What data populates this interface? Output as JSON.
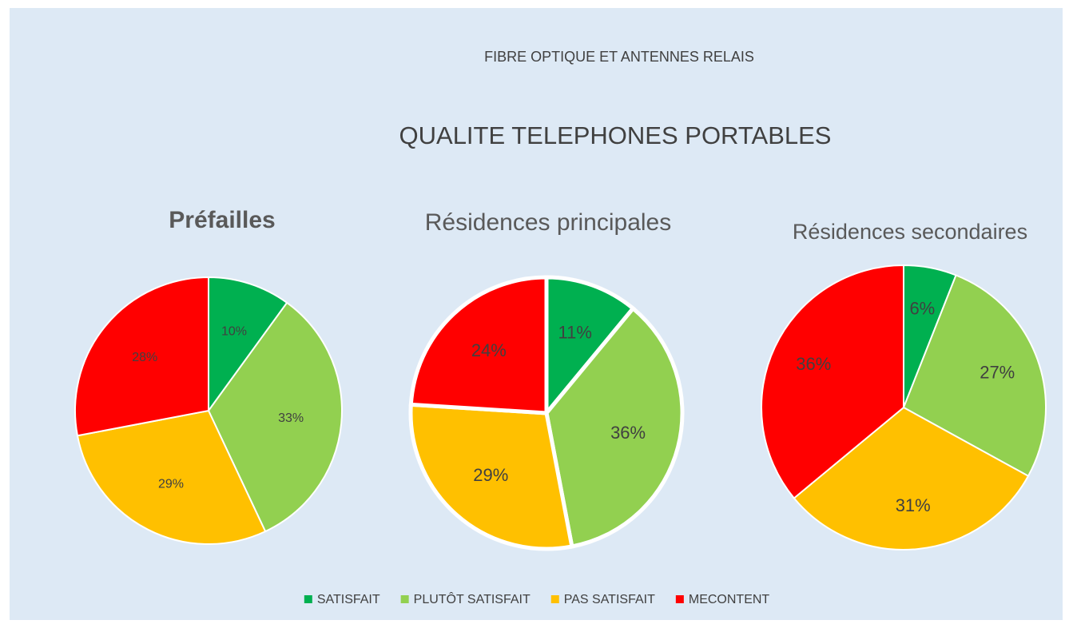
{
  "header": {
    "topic": "FIBRE OPTIQUE ET ANTENNES RELAIS",
    "title": "QUALITE TELEPHONES PORTABLES"
  },
  "chart_data": [
    {
      "type": "pie",
      "title": "Préfailles",
      "categories": [
        "SATISFAIT",
        "PLUTÔT SATISFAIT",
        "PAS SATISFAIT",
        "MECONTENT"
      ],
      "values": [
        10,
        33,
        29,
        28
      ],
      "value_labels": [
        "10%",
        "33%",
        "29%",
        "28%"
      ],
      "colors": [
        "#00b050",
        "#92d050",
        "#ffc000",
        "#ff0000"
      ]
    },
    {
      "type": "pie",
      "title": "Résidences  principales",
      "categories": [
        "SATISFAIT",
        "PLUTÔT SATISFAIT",
        "PAS SATISFAIT",
        "MECONTENT"
      ],
      "values": [
        11,
        36,
        29,
        24
      ],
      "value_labels": [
        "11%",
        "36%",
        "29%",
        "24%"
      ],
      "colors": [
        "#00b050",
        "#92d050",
        "#ffc000",
        "#ff0000"
      ]
    },
    {
      "type": "pie",
      "title": "Résidences secondaires",
      "categories": [
        "SATISFAIT",
        "PLUTÔT SATISFAIT",
        "PAS SATISFAIT",
        "MECONTENT"
      ],
      "values": [
        6,
        27,
        31,
        36
      ],
      "value_labels": [
        "6%",
        "27%",
        "31%",
        "36%"
      ],
      "colors": [
        "#00b050",
        "#92d050",
        "#ffc000",
        "#ff0000"
      ]
    }
  ]
}
